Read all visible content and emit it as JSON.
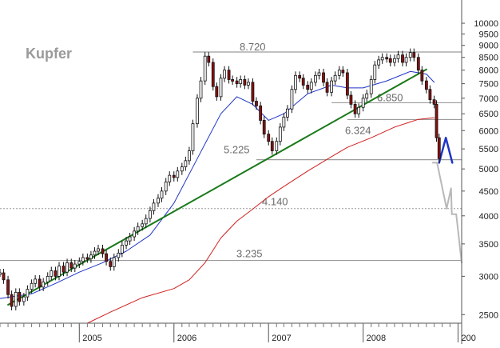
{
  "chart_data": {
    "type": "candlestick",
    "title": "Kupfer",
    "scale": "log",
    "ylim": [
      2400,
      11000
    ],
    "yticks": [
      "10000",
      "9500",
      "9000",
      "8500",
      "8000",
      "7500",
      "7000",
      "6500",
      "6000",
      "5500",
      "5000",
      "4500",
      "4000",
      "3500",
      "3000",
      "2500"
    ],
    "xlim": [
      "2004-03-01",
      "2009-01-15"
    ],
    "xticks": [
      {
        "label": "2005",
        "date": "2005-01-01"
      },
      {
        "label": "2006",
        "date": "2006-01-01"
      },
      {
        "label": "2007",
        "date": "2007-01-01"
      },
      {
        "label": "2008",
        "date": "2008-01-01"
      },
      {
        "label": "200",
        "date": "2009-01-01"
      }
    ],
    "levels": [
      {
        "label": "8.720",
        "value": 8720,
        "from": "2006-03-15"
      },
      {
        "label": "6.850",
        "value": 6850,
        "from": "2007-09-01"
      },
      {
        "label": "6.324",
        "value": 6324,
        "from": "2007-11-01"
      },
      {
        "label": "5.225",
        "value": 5225,
        "from": "2006-11-15"
      },
      {
        "label": "4.140",
        "value": 4140,
        "from": "2004-03-01",
        "dashed": true
      },
      {
        "label": "3.235",
        "value": 3235,
        "from": "2004-03-01"
      }
    ],
    "trendline": {
      "color": "#1a7a1a",
      "points": [
        [
          "2004-04-01",
          2620
        ],
        [
          "2008-09-01",
          8030
        ]
      ]
    },
    "ma_blue": {
      "color": "#1f35c8",
      "points": [
        [
          "2004-03-01",
          2700
        ],
        [
          "2004-07-01",
          2760
        ],
        [
          "2004-10-01",
          2900
        ],
        [
          "2005-01-01",
          3060
        ],
        [
          "2005-04-01",
          3200
        ],
        [
          "2005-07-01",
          3380
        ],
        [
          "2005-10-01",
          3650
        ],
        [
          "2006-01-01",
          4250
        ],
        [
          "2006-04-01",
          5250
        ],
        [
          "2006-07-01",
          6500
        ],
        [
          "2006-09-01",
          7050
        ],
        [
          "2006-11-01",
          6800
        ],
        [
          "2007-01-01",
          6300
        ],
        [
          "2007-03-01",
          6500
        ],
        [
          "2007-06-01",
          7150
        ],
        [
          "2007-09-01",
          7450
        ],
        [
          "2007-11-01",
          7350
        ],
        [
          "2008-01-01",
          7350
        ],
        [
          "2008-04-01",
          7600
        ],
        [
          "2008-07-01",
          7950
        ],
        [
          "2008-09-01",
          7850
        ],
        [
          "2008-10-01",
          7550
        ]
      ]
    },
    "ma_red": {
      "color": "#d02020",
      "points": [
        [
          "2005-02-01",
          2400
        ],
        [
          "2005-05-01",
          2530
        ],
        [
          "2005-09-01",
          2710
        ],
        [
          "2006-01-01",
          2830
        ],
        [
          "2006-03-01",
          2950
        ],
        [
          "2006-05-01",
          3200
        ],
        [
          "2006-07-01",
          3600
        ],
        [
          "2006-09-01",
          3900
        ],
        [
          "2006-11-01",
          4130
        ],
        [
          "2007-01-01",
          4380
        ],
        [
          "2007-03-01",
          4600
        ],
        [
          "2007-06-01",
          4950
        ],
        [
          "2007-09-01",
          5300
        ],
        [
          "2007-11-01",
          5540
        ],
        [
          "2008-02-01",
          5800
        ],
        [
          "2008-05-01",
          6100
        ],
        [
          "2008-08-01",
          6330
        ],
        [
          "2008-10-01",
          6380
        ]
      ]
    },
    "projection_blue": {
      "color": "#1f35c8",
      "points": [
        [
          "2008-10-20",
          5150
        ],
        [
          "2008-11-15",
          5800
        ],
        [
          "2008-12-10",
          5150
        ]
      ]
    },
    "projection_gray": {
      "color": "#b8b8b8",
      "points": [
        [
          "2008-09-25",
          5150
        ],
        [
          "2008-10-12",
          5150
        ],
        [
          "2008-11-18",
          4140
        ],
        [
          "2008-12-05",
          4560
        ],
        [
          "2008-12-08",
          4030
        ],
        [
          "2008-12-25",
          4030
        ],
        [
          "2009-01-15",
          3200
        ]
      ]
    },
    "series": [
      {
        "values": [
          [
            "2004-03-01",
            3050
          ],
          [
            "2004-03-15",
            2950
          ],
          [
            "2004-04-01",
            2750
          ],
          [
            "2004-04-15",
            2600
          ],
          [
            "2004-05-01",
            2780
          ],
          [
            "2004-05-15",
            2660
          ],
          [
            "2004-06-01",
            2720
          ],
          [
            "2004-06-15",
            2820
          ],
          [
            "2004-07-01",
            2900
          ],
          [
            "2004-07-15",
            2960
          ],
          [
            "2004-08-01",
            2850
          ],
          [
            "2004-08-15",
            2920
          ],
          [
            "2004-09-01",
            3000
          ],
          [
            "2004-09-15",
            3080
          ],
          [
            "2004-10-01",
            3000
          ],
          [
            "2004-10-15",
            3150
          ],
          [
            "2004-11-01",
            3060
          ],
          [
            "2004-11-15",
            3200
          ],
          [
            "2004-12-01",
            3120
          ],
          [
            "2004-12-15",
            3180
          ],
          [
            "2005-01-01",
            3220
          ],
          [
            "2005-01-15",
            3280
          ],
          [
            "2005-02-01",
            3260
          ],
          [
            "2005-02-15",
            3320
          ],
          [
            "2005-03-01",
            3380
          ],
          [
            "2005-03-15",
            3420
          ],
          [
            "2005-04-01",
            3340
          ],
          [
            "2005-04-15",
            3220
          ],
          [
            "2005-05-01",
            3140
          ],
          [
            "2005-05-15",
            3280
          ],
          [
            "2005-06-01",
            3350
          ],
          [
            "2005-06-15",
            3480
          ],
          [
            "2005-07-01",
            3550
          ],
          [
            "2005-07-15",
            3620
          ],
          [
            "2005-08-01",
            3720
          ],
          [
            "2005-08-15",
            3800
          ],
          [
            "2005-09-01",
            3850
          ],
          [
            "2005-09-15",
            3950
          ],
          [
            "2005-10-01",
            4100
          ],
          [
            "2005-10-15",
            4250
          ],
          [
            "2005-11-01",
            4350
          ],
          [
            "2005-11-15",
            4500
          ],
          [
            "2005-12-01",
            4700
          ],
          [
            "2005-12-15",
            4850
          ],
          [
            "2006-01-01",
            4800
          ],
          [
            "2006-01-15",
            4950
          ],
          [
            "2006-02-01",
            5050
          ],
          [
            "2006-02-15",
            5200
          ],
          [
            "2006-03-01",
            5450
          ],
          [
            "2006-03-15",
            6200
          ],
          [
            "2006-04-01",
            7000
          ],
          [
            "2006-04-15",
            7600
          ],
          [
            "2006-05-01",
            8550
          ],
          [
            "2006-05-15",
            8300
          ],
          [
            "2006-06-01",
            7400
          ],
          [
            "2006-06-15",
            7050
          ],
          [
            "2006-07-01",
            7700
          ],
          [
            "2006-07-15",
            8000
          ],
          [
            "2006-08-01",
            7650
          ],
          [
            "2006-08-15",
            7600
          ],
          [
            "2006-09-01",
            7500
          ],
          [
            "2006-09-15",
            7650
          ],
          [
            "2006-10-01",
            7450
          ],
          [
            "2006-10-15",
            7550
          ],
          [
            "2006-11-01",
            6900
          ],
          [
            "2006-11-15",
            6750
          ],
          [
            "2006-12-01",
            6300
          ],
          [
            "2006-12-15",
            5900
          ],
          [
            "2007-01-01",
            5700
          ],
          [
            "2007-01-15",
            5450
          ],
          [
            "2007-02-01",
            5700
          ],
          [
            "2007-02-15",
            6100
          ],
          [
            "2007-03-01",
            6400
          ],
          [
            "2007-03-15",
            6650
          ],
          [
            "2007-04-01",
            7300
          ],
          [
            "2007-04-15",
            7800
          ],
          [
            "2007-05-01",
            7700
          ],
          [
            "2007-05-15",
            7450
          ],
          [
            "2007-06-01",
            7300
          ],
          [
            "2007-06-15",
            7550
          ],
          [
            "2007-07-01",
            7800
          ],
          [
            "2007-07-15",
            7900
          ],
          [
            "2007-08-01",
            7550
          ],
          [
            "2007-08-15",
            7200
          ],
          [
            "2007-09-01",
            7600
          ],
          [
            "2007-09-15",
            7800
          ],
          [
            "2007-10-01",
            8000
          ],
          [
            "2007-10-15",
            7900
          ],
          [
            "2007-11-01",
            7100
          ],
          [
            "2007-11-15",
            6800
          ],
          [
            "2007-12-01",
            6500
          ],
          [
            "2007-12-15",
            6700
          ],
          [
            "2008-01-01",
            7000
          ],
          [
            "2008-01-15",
            7150
          ],
          [
            "2008-02-01",
            7650
          ],
          [
            "2008-02-15",
            8200
          ],
          [
            "2008-03-01",
            8400
          ],
          [
            "2008-03-15",
            8500
          ],
          [
            "2008-04-01",
            8450
          ],
          [
            "2008-04-15",
            8300
          ],
          [
            "2008-05-01",
            8450
          ],
          [
            "2008-05-15",
            8600
          ],
          [
            "2008-06-01",
            8300
          ],
          [
            "2008-06-15",
            8500
          ],
          [
            "2008-07-01",
            8700
          ],
          [
            "2008-07-15",
            8500
          ],
          [
            "2008-08-01",
            8000
          ],
          [
            "2008-08-15",
            7600
          ],
          [
            "2008-09-01",
            7300
          ],
          [
            "2008-09-15",
            6950
          ],
          [
            "2008-10-01",
            6800
          ],
          [
            "2008-10-10",
            5800
          ],
          [
            "2008-10-20",
            5250
          ]
        ]
      }
    ],
    "grid": false,
    "legend": "none"
  }
}
